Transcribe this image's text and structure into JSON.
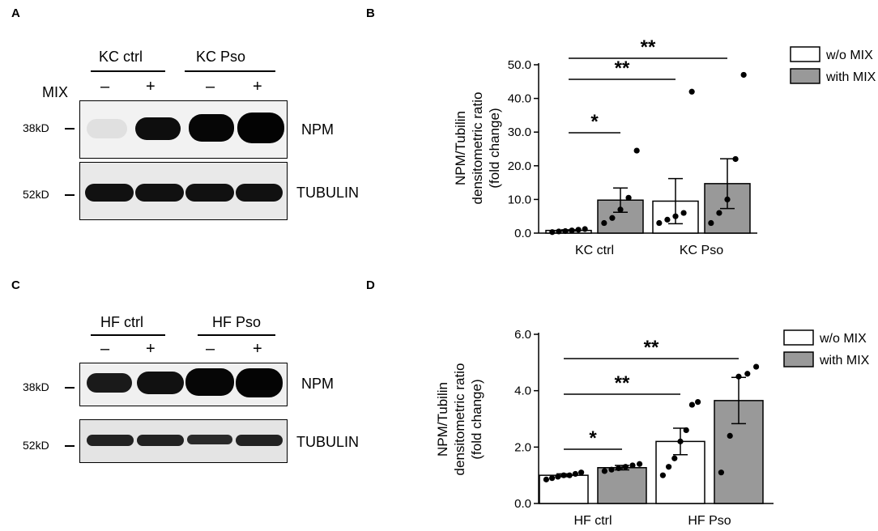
{
  "panels": {
    "A": {
      "letter": "A",
      "groups": [
        "KC ctrl",
        "KC Pso"
      ],
      "treatment_label": "MIX",
      "signs": [
        "–",
        "+",
        "–",
        "+"
      ],
      "bands": [
        {
          "marker": "38kD",
          "protein": "NPM"
        },
        {
          "marker": "52kD",
          "protein": "TUBULIN"
        }
      ]
    },
    "B": {
      "letter": "B"
    },
    "C": {
      "letter": "C",
      "groups": [
        "HF ctrl",
        "HF Pso"
      ],
      "signs": [
        "–",
        "+",
        "–",
        "+"
      ],
      "bands": [
        {
          "marker": "38kD",
          "protein": "NPM"
        },
        {
          "marker": "52kD",
          "protein": "TUBULIN"
        }
      ]
    },
    "D": {
      "letter": "D"
    }
  },
  "chart_data": [
    {
      "type": "bar",
      "panel": "B",
      "categories": [
        "KC ctrl",
        "KC Pso"
      ],
      "ylabel_lines": [
        "NPM/Tubilin",
        "densitometric ratio",
        "(fold change)"
      ],
      "yticks": [
        "0.0",
        "10.0",
        "20.0",
        "30.0",
        "40.0",
        "50.0"
      ],
      "ylim": [
        0,
        50
      ],
      "legend": {
        "position": "top-right",
        "entries": [
          "w/o MIX",
          "with MIX"
        ]
      },
      "series": [
        {
          "name": "w/o MIX",
          "color": "#ffffff",
          "values": [
            0.8,
            9.5
          ],
          "sem": [
            0.2,
            6.7
          ],
          "points": [
            [
              0.3,
              0.5,
              0.6,
              0.8,
              1.0,
              1.2
            ],
            [
              3.0,
              4.0,
              5.0,
              6.0,
              42.0
            ]
          ]
        },
        {
          "name": "with MIX",
          "color": "#999999",
          "values": [
            9.8,
            14.7
          ],
          "sem": [
            3.6,
            7.4
          ],
          "points": [
            [
              3.0,
              4.5,
              7.0,
              10.5,
              24.5
            ],
            [
              3.0,
              6.0,
              10.0,
              22.0,
              47.0
            ]
          ]
        }
      ],
      "significance": [
        {
          "from": "KC ctrl w/o MIX",
          "to": "KC ctrl with MIX",
          "label": "*"
        },
        {
          "from": "KC ctrl w/o MIX",
          "to": "KC Pso w/o MIX",
          "label": "**"
        },
        {
          "from": "KC ctrl w/o MIX",
          "to": "KC Pso with MIX",
          "label": "**"
        }
      ]
    },
    {
      "type": "bar",
      "panel": "D",
      "categories": [
        "HF ctrl",
        "HF Pso"
      ],
      "ylabel_lines": [
        "NPM/Tubilin",
        "densitometric ratio",
        "(fold change)"
      ],
      "yticks": [
        "0.0",
        "2.0",
        "4.0",
        "6.0"
      ],
      "ylim": [
        0,
        6
      ],
      "legend": {
        "position": "top-right",
        "entries": [
          "w/o MIX",
          "with MIX"
        ]
      },
      "series": [
        {
          "name": "w/o MIX",
          "color": "#ffffff",
          "values": [
            1.0,
            2.2
          ],
          "sem": [
            0.05,
            0.47
          ],
          "points": [
            [
              0.85,
              0.9,
              0.95,
              1.0,
              1.0,
              1.05,
              1.1
            ],
            [
              1.0,
              1.3,
              1.6,
              2.2,
              2.6,
              3.5,
              3.6
            ]
          ]
        },
        {
          "name": "with MIX",
          "color": "#999999",
          "values": [
            1.27,
            3.65
          ],
          "sem": [
            0.08,
            0.82
          ],
          "points": [
            [
              1.15,
              1.2,
              1.25,
              1.3,
              1.35,
              1.4
            ],
            [
              1.1,
              2.4,
              4.5,
              4.6,
              4.85
            ]
          ]
        }
      ],
      "significance": [
        {
          "from": "HF ctrl w/o MIX",
          "to": "HF ctrl with MIX",
          "label": "*"
        },
        {
          "from": "HF ctrl w/o MIX",
          "to": "HF Pso w/o MIX",
          "label": "**"
        },
        {
          "from": "HF ctrl w/o MIX",
          "to": "HF Pso with MIX",
          "label": "**"
        }
      ]
    }
  ]
}
